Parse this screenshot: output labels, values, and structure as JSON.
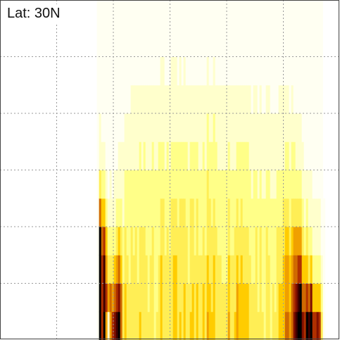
{
  "chart_data": {
    "type": "heatmap",
    "title": "Lat: 30N",
    "xlabel": "",
    "ylabel": "",
    "grid": true,
    "column_profiles": [
      {
        "x": 0.285,
        "levels": [
          0.0,
          0.0,
          0.0,
          0.0,
          0.0,
          0.0,
          0.0,
          0.0,
          0.0,
          0.0,
          0.0,
          0.0
        ]
      },
      {
        "x": 0.29,
        "levels": [
          0.96,
          0.92,
          0.9,
          0.8,
          0.5,
          0.25,
          0.1,
          0.05,
          0.02,
          0.0,
          0.0,
          0.0
        ]
      },
      {
        "x": 0.305,
        "levels": [
          0.95,
          0.9,
          0.85,
          0.7,
          0.4,
          0.2,
          0.08,
          0.04,
          0.02,
          0.0,
          0.0,
          0.0
        ]
      },
      {
        "x": 0.315,
        "levels": [
          0.0,
          0.5,
          0.3,
          0.2,
          0.1,
          0.05,
          0.02,
          0.0,
          0.0,
          0.0,
          0.0,
          0.0
        ]
      },
      {
        "x": 0.33,
        "levels": [
          0.9,
          0.6,
          0.35,
          0.2,
          0.1,
          0.05,
          0.02,
          0.0,
          0.0,
          0.0,
          0.0,
          0.0
        ]
      },
      {
        "x": 0.345,
        "levels": [
          0.85,
          0.7,
          0.5,
          0.3,
          0.2,
          0.1,
          0.05,
          0.02,
          0.0,
          0.0,
          0.0,
          0.0
        ]
      },
      {
        "x": 0.36,
        "levels": [
          0.3,
          0.3,
          0.25,
          0.2,
          0.15,
          0.12,
          0.08,
          0.05,
          0.02,
          0.0,
          0.0,
          0.0
        ]
      },
      {
        "x": 0.38,
        "levels": [
          0.28,
          0.28,
          0.25,
          0.22,
          0.2,
          0.16,
          0.12,
          0.08,
          0.05,
          0.02,
          0.0,
          0.0
        ]
      },
      {
        "x": 0.41,
        "levels": [
          0.32,
          0.3,
          0.28,
          0.26,
          0.22,
          0.18,
          0.14,
          0.1,
          0.06,
          0.03,
          0.0,
          0.0
        ]
      },
      {
        "x": 0.45,
        "levels": [
          0.3,
          0.3,
          0.28,
          0.25,
          0.22,
          0.2,
          0.16,
          0.12,
          0.08,
          0.04,
          0.02,
          0.0
        ]
      },
      {
        "x": 0.5,
        "levels": [
          0.32,
          0.3,
          0.3,
          0.28,
          0.25,
          0.2,
          0.16,
          0.12,
          0.08,
          0.05,
          0.02,
          0.0
        ]
      },
      {
        "x": 0.55,
        "levels": [
          0.3,
          0.3,
          0.28,
          0.26,
          0.24,
          0.2,
          0.16,
          0.12,
          0.08,
          0.04,
          0.02,
          0.0
        ]
      },
      {
        "x": 0.6,
        "levels": [
          0.42,
          0.4,
          0.36,
          0.3,
          0.26,
          0.22,
          0.18,
          0.14,
          0.09,
          0.05,
          0.02,
          0.0
        ]
      },
      {
        "x": 0.65,
        "levels": [
          0.32,
          0.3,
          0.28,
          0.26,
          0.22,
          0.2,
          0.16,
          0.12,
          0.08,
          0.04,
          0.02,
          0.0
        ]
      },
      {
        "x": 0.7,
        "levels": [
          0.5,
          0.45,
          0.4,
          0.34,
          0.28,
          0.22,
          0.18,
          0.12,
          0.08,
          0.04,
          0.02,
          0.0
        ]
      },
      {
        "x": 0.75,
        "levels": [
          0.32,
          0.3,
          0.28,
          0.26,
          0.22,
          0.18,
          0.14,
          0.1,
          0.06,
          0.03,
          0.0,
          0.0
        ]
      },
      {
        "x": 0.8,
        "levels": [
          0.3,
          0.28,
          0.26,
          0.24,
          0.2,
          0.16,
          0.12,
          0.08,
          0.05,
          0.02,
          0.0,
          0.0
        ]
      },
      {
        "x": 0.85,
        "levels": [
          0.55,
          0.5,
          0.44,
          0.38,
          0.3,
          0.22,
          0.16,
          0.1,
          0.06,
          0.03,
          0.0,
          0.0
        ]
      },
      {
        "x": 0.875,
        "levels": [
          0.9,
          0.8,
          0.6,
          0.45,
          0.3,
          0.2,
          0.12,
          0.06,
          0.02,
          0.0,
          0.0,
          0.0
        ]
      },
      {
        "x": 0.895,
        "levels": [
          0.95,
          0.75,
          0.5,
          0.3,
          0.18,
          0.1,
          0.05,
          0.02,
          0.0,
          0.0,
          0.0,
          0.0
        ]
      },
      {
        "x": 0.915,
        "levels": [
          0.98,
          0.6,
          0.3,
          0.15,
          0.08,
          0.04,
          0.02,
          0.0,
          0.0,
          0.0,
          0.0,
          0.0
        ]
      },
      {
        "x": 0.935,
        "levels": [
          0.7,
          0.4,
          0.2,
          0.1,
          0.05,
          0.02,
          0.0,
          0.0,
          0.0,
          0.0,
          0.0,
          0.0
        ]
      },
      {
        "x": 0.95,
        "levels": [
          0.0,
          0.0,
          0.0,
          0.0,
          0.0,
          0.0,
          0.0,
          0.0,
          0.0,
          0.0,
          0.0,
          0.0
        ]
      }
    ],
    "colormap": [
      "#fffff2",
      "#ffffcc",
      "#ffff88",
      "#ffee55",
      "#ffcc00",
      "#f0a000",
      "#d06a00",
      "#b03000",
      "#801000",
      "#400000",
      "#000000"
    ],
    "grid_color": "#999999"
  }
}
